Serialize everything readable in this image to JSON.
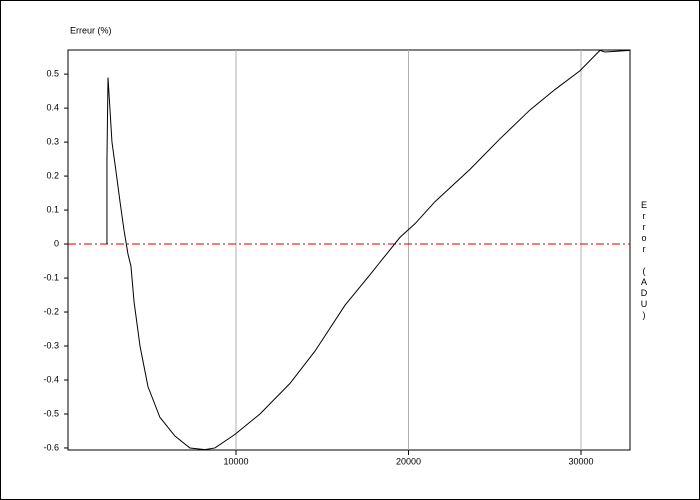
{
  "chart_data": {
    "type": "line",
    "y_label": "Erreur (%)",
    "y2_label": "Error (ADU)",
    "x": [
      2520,
      2520,
      2580,
      2810,
      3040,
      3275,
      3510,
      3740,
      3910,
      4090,
      4435,
      4900,
      5590,
      6460,
      7330,
      8200,
      8780,
      9940,
      11390,
      13130,
      14580,
      16320,
      17770,
      19510,
      20380,
      21540,
      23570,
      25310,
      27050,
      28500,
      29940,
      30520,
      31100,
      31390,
      32840
    ],
    "series": [
      {
        "color": "#000000",
        "values": [
          0,
          0.25,
          0.49,
          0.3,
          0.215,
          0.125,
          0.04,
          -0.03,
          -0.065,
          -0.17,
          -0.3,
          -0.42,
          -0.51,
          -0.565,
          -0.6,
          -0.605,
          -0.6,
          -0.56,
          -0.5,
          -0.41,
          -0.315,
          -0.18,
          -0.09,
          0.02,
          0.06,
          0.125,
          0.22,
          0.31,
          0.395,
          0.455,
          0.51,
          0.54,
          0.57,
          0.565,
          0.57
        ]
      }
    ],
    "xlim": [
      261,
      32840
    ],
    "ylim": [
      -0.606,
      0.571
    ],
    "xticks": [
      10000,
      20000,
      30000
    ],
    "yticks": [
      -0.6,
      -0.5,
      -0.4,
      -0.3,
      -0.2,
      -0.1,
      0,
      0.1,
      0.2,
      0.3,
      0.4,
      0.5
    ],
    "grid": "x",
    "reference_line": {
      "value": 0,
      "color": "#cc0000"
    }
  }
}
